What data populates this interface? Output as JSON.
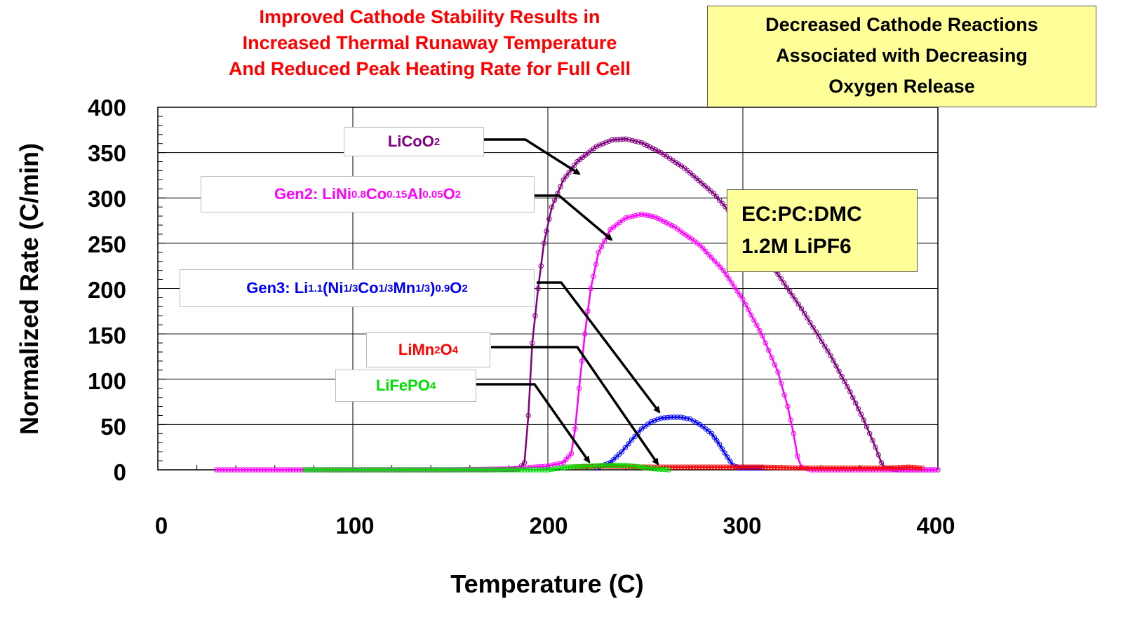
{
  "chart_data": {
    "type": "line",
    "title_lines": [
      "Improved Cathode Stability Results in",
      "Increased Thermal Runaway Temperature",
      "And Reduced Peak Heating Rate for Full Cell"
    ],
    "xlabel": "Temperature (C)",
    "ylabel": "Normalized Rate (C/min)",
    "xlim": [
      0,
      400
    ],
    "ylim": [
      0,
      400
    ],
    "x_ticks": [
      "0",
      "100",
      "200",
      "300",
      "400"
    ],
    "y_ticks": [
      "400",
      "350",
      "300",
      "250",
      "200",
      "150",
      "100",
      "50",
      "0"
    ],
    "grid": true,
    "series": [
      {
        "name": "LiCoO2",
        "color": "#800080",
        "points": [
          [
            85,
            0
          ],
          [
            170,
            0
          ],
          [
            185,
            1
          ],
          [
            188,
            8
          ],
          [
            190,
            60
          ],
          [
            192,
            140
          ],
          [
            195,
            200
          ],
          [
            198,
            250
          ],
          [
            202,
            290
          ],
          [
            208,
            320
          ],
          [
            215,
            340
          ],
          [
            225,
            357
          ],
          [
            233,
            364
          ],
          [
            240,
            365
          ],
          [
            248,
            361
          ],
          [
            258,
            350
          ],
          [
            270,
            333
          ],
          [
            285,
            305
          ],
          [
            300,
            268
          ],
          [
            315,
            225
          ],
          [
            330,
            178
          ],
          [
            345,
            126
          ],
          [
            355,
            86
          ],
          [
            362,
            55
          ],
          [
            368,
            25
          ],
          [
            371,
            8
          ],
          [
            373,
            2
          ],
          [
            380,
            0
          ],
          [
            400,
            0
          ]
        ]
      },
      {
        "name": "Gen2: LiNi0.8Co0.15Al0.05O2",
        "color": "#ff00ff",
        "points": [
          [
            30,
            0
          ],
          [
            50,
            0
          ],
          [
            150,
            0
          ],
          [
            180,
            1
          ],
          [
            200,
            4
          ],
          [
            208,
            8
          ],
          [
            212,
            18
          ],
          [
            214,
            45
          ],
          [
            216,
            90
          ],
          [
            219,
            150
          ],
          [
            222,
            200
          ],
          [
            226,
            240
          ],
          [
            232,
            265
          ],
          [
            240,
            278
          ],
          [
            248,
            282
          ],
          [
            255,
            279
          ],
          [
            265,
            268
          ],
          [
            278,
            248
          ],
          [
            290,
            220
          ],
          [
            300,
            188
          ],
          [
            310,
            148
          ],
          [
            318,
            108
          ],
          [
            323,
            70
          ],
          [
            326,
            40
          ],
          [
            328,
            15
          ],
          [
            330,
            3
          ],
          [
            335,
            0
          ],
          [
            400,
            0
          ]
        ]
      },
      {
        "name": "Gen3: Li1.1(Ni1/3Co1/3Mn1/3)0.9O2",
        "color": "#0000ff",
        "points": [
          [
            225,
            2
          ],
          [
            232,
            8
          ],
          [
            238,
            20
          ],
          [
            243,
            33
          ],
          [
            248,
            45
          ],
          [
            253,
            53
          ],
          [
            258,
            57
          ],
          [
            263,
            58
          ],
          [
            268,
            58
          ],
          [
            273,
            56
          ],
          [
            278,
            50
          ],
          [
            284,
            40
          ],
          [
            288,
            28
          ],
          [
            292,
            14
          ],
          [
            295,
            5
          ],
          [
            298,
            2
          ],
          [
            310,
            2
          ]
        ]
      },
      {
        "name": "LiMn2O4",
        "color": "#ff0000",
        "points": [
          [
            210,
            3
          ],
          [
            230,
            4
          ],
          [
            250,
            3
          ],
          [
            270,
            3
          ],
          [
            290,
            3
          ],
          [
            310,
            3
          ],
          [
            330,
            2
          ],
          [
            375,
            2
          ],
          [
            385,
            3
          ],
          [
            392,
            2
          ]
        ]
      },
      {
        "name": "LiFePO4",
        "color": "#00dd00",
        "points": [
          [
            75,
            0
          ],
          [
            85,
            0
          ],
          [
            200,
            0
          ],
          [
            210,
            3
          ],
          [
            220,
            4
          ],
          [
            230,
            5
          ],
          [
            240,
            5
          ],
          [
            248,
            3
          ],
          [
            255,
            1
          ],
          [
            262,
            0
          ]
        ]
      }
    ],
    "annotations": [
      {
        "id": "licoo2",
        "parts": [
          [
            "",
            "LiCoO"
          ],
          [
            "sub",
            "2"
          ]
        ],
        "color": "#800080"
      },
      {
        "id": "gen2",
        "parts": [
          [
            "",
            "Gen2: LiNi"
          ],
          [
            "sub",
            "0.8"
          ],
          [
            "",
            "Co"
          ],
          [
            "sub",
            "0.15"
          ],
          [
            "",
            "Al"
          ],
          [
            "sub",
            "0.05"
          ],
          [
            "",
            "O"
          ],
          [
            "sub",
            "2"
          ]
        ],
        "color": "#ff00ff"
      },
      {
        "id": "gen3",
        "parts": [
          [
            "",
            "Gen3: Li"
          ],
          [
            "sub",
            "1.1"
          ],
          [
            "",
            "(Ni"
          ],
          [
            "sub",
            "1/3"
          ],
          [
            "",
            "Co"
          ],
          [
            "sub",
            "1/3"
          ],
          [
            "",
            "Mn"
          ],
          [
            "sub",
            "1/3"
          ],
          [
            "",
            ")"
          ],
          [
            "sub",
            "0.9"
          ],
          [
            "",
            "O"
          ],
          [
            "sub",
            "2"
          ]
        ],
        "color": "#0000ff"
      },
      {
        "id": "limn2o4",
        "parts": [
          [
            "",
            "LiMn"
          ],
          [
            "sub",
            "2"
          ],
          [
            "",
            "O"
          ],
          [
            "sub",
            "4"
          ]
        ],
        "color": "#ff0000"
      },
      {
        "id": "lifepo4",
        "parts": [
          [
            "",
            "LiFePO"
          ],
          [
            "sub",
            "4"
          ]
        ],
        "color": "#00dd00"
      }
    ]
  },
  "notes": {
    "cathode_reactions_lines": [
      "Decreased Cathode Reactions",
      "Associated with Decreasing",
      "Oxygen Release"
    ],
    "electrolyte_lines": [
      "EC:PC:DMC",
      "1.2M LiPF6"
    ]
  }
}
